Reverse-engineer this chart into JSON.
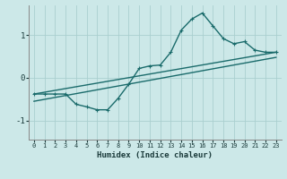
{
  "title": "",
  "xlabel": "Humidex (Indice chaleur)",
  "ylabel": "",
  "bg_color": "#cce8e8",
  "grid_color": "#aacfcf",
  "line_color": "#1a6b6b",
  "xlim": [
    -0.5,
    23.5
  ],
  "ylim": [
    -1.45,
    1.7
  ],
  "yticks": [
    -1,
    0,
    1
  ],
  "xticks": [
    0,
    1,
    2,
    3,
    4,
    5,
    6,
    7,
    8,
    9,
    10,
    11,
    12,
    13,
    14,
    15,
    16,
    17,
    18,
    19,
    20,
    21,
    22,
    23
  ],
  "curve1_x": [
    0,
    1,
    2,
    3,
    4,
    5,
    6,
    7,
    8,
    9,
    10,
    11,
    12,
    13,
    14,
    15,
    16,
    17,
    18,
    19,
    20,
    21,
    22,
    23
  ],
  "curve1_y": [
    -0.38,
    -0.38,
    -0.38,
    -0.38,
    -0.62,
    -0.68,
    -0.75,
    -0.75,
    -0.48,
    -0.15,
    0.22,
    0.28,
    0.3,
    0.6,
    1.12,
    1.38,
    1.52,
    1.22,
    0.92,
    0.8,
    0.85,
    0.65,
    0.6,
    0.6
  ],
  "curve2_x": [
    0,
    23
  ],
  "curve2_y": [
    -0.38,
    0.6
  ],
  "curve3_x": [
    0,
    23
  ],
  "curve3_y": [
    -0.55,
    0.48
  ],
  "marker_style": "+",
  "marker_size": 3,
  "linewidth": 1.0
}
